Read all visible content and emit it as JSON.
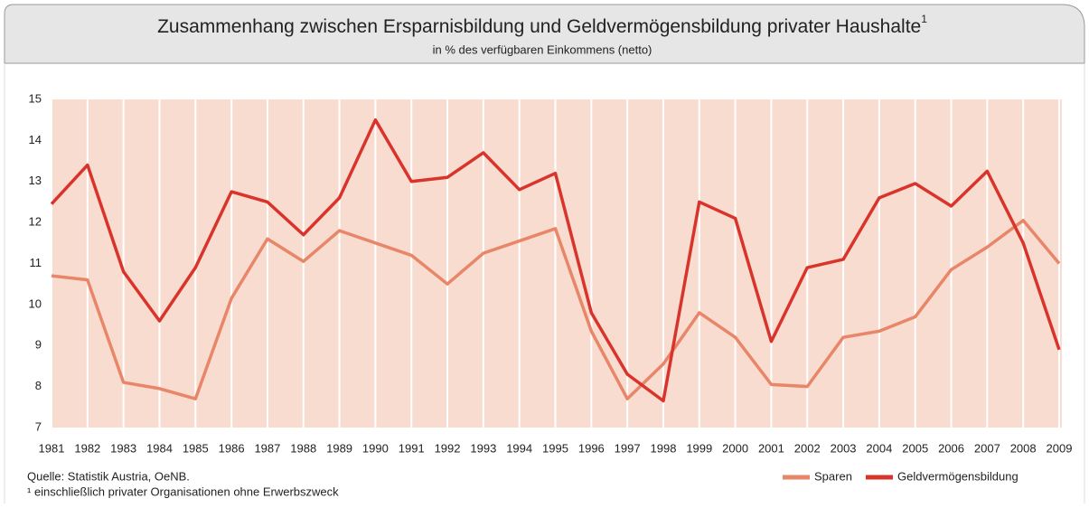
{
  "chart_data": {
    "type": "line",
    "title": "Zusammenhang zwischen Ersparnisbildung und Geldvermögensbildung privater Haushalte",
    "title_superscript": "1",
    "subtitle": "in % des verfügbaren Einkommens (netto)",
    "categories": [
      "1981",
      "1982",
      "1983",
      "1984",
      "1985",
      "1986",
      "1987",
      "1988",
      "1989",
      "1990",
      "1991",
      "1992",
      "1993",
      "1994",
      "1995",
      "1996",
      "1997",
      "1998",
      "1999",
      "2000",
      "2001",
      "2002",
      "2003",
      "2004",
      "2005",
      "2006",
      "2007",
      "2008",
      "2009"
    ],
    "series": [
      {
        "name": "Sparen",
        "color": "#e8866a",
        "values": [
          10.7,
          10.6,
          8.1,
          7.95,
          7.7,
          10.15,
          11.6,
          11.05,
          11.8,
          11.5,
          11.2,
          10.5,
          11.25,
          11.55,
          11.85,
          9.35,
          7.7,
          8.55,
          9.8,
          9.2,
          8.05,
          8.0,
          9.2,
          9.35,
          9.7,
          10.85,
          11.4,
          12.05,
          11.0
        ]
      },
      {
        "name": "Geldvermögensbildung",
        "color": "#d9342b",
        "values": [
          12.45,
          13.4,
          10.8,
          9.6,
          10.9,
          12.75,
          12.5,
          11.7,
          12.6,
          14.5,
          13.0,
          13.1,
          13.7,
          12.8,
          13.2,
          9.8,
          8.3,
          7.65,
          12.5,
          12.1,
          9.1,
          10.9,
          11.1,
          12.6,
          12.95,
          12.4,
          13.25,
          11.5,
          8.9
        ]
      }
    ],
    "ylim": [
      7,
      15
    ],
    "yticks": [
      7,
      8,
      9,
      10,
      11,
      12,
      13,
      14,
      15
    ],
    "grid": true,
    "legend": "bottom-right",
    "source": "Quelle: Statistik Austria, OeNB.",
    "footnote": "¹ einschließlich privater Organisationen ohne Erwerbszweck"
  }
}
